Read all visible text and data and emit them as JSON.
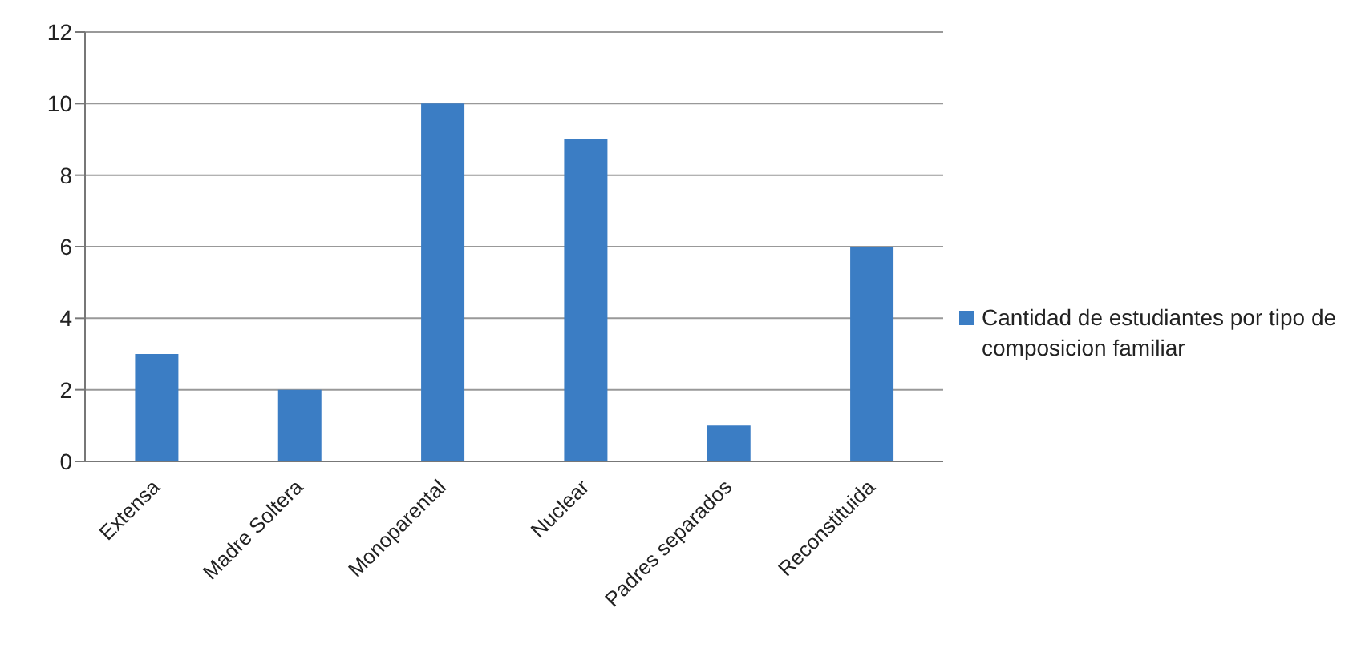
{
  "chart_data": {
    "type": "bar",
    "categories": [
      "Extensa",
      "Madre Soltera",
      "Monoparental",
      "Nuclear",
      "Padres separados",
      "Reconstituida"
    ],
    "series": [
      {
        "name": "Cantidad de estudiantes por tipo de composicion familiar",
        "color": "#3b7dc4",
        "values": [
          3,
          2,
          10,
          9,
          1,
          6
        ]
      }
    ],
    "ylim": [
      0,
      12
    ],
    "yticks": [
      0,
      2,
      4,
      6,
      8,
      10,
      12
    ],
    "grid": "y",
    "legend": "right"
  }
}
